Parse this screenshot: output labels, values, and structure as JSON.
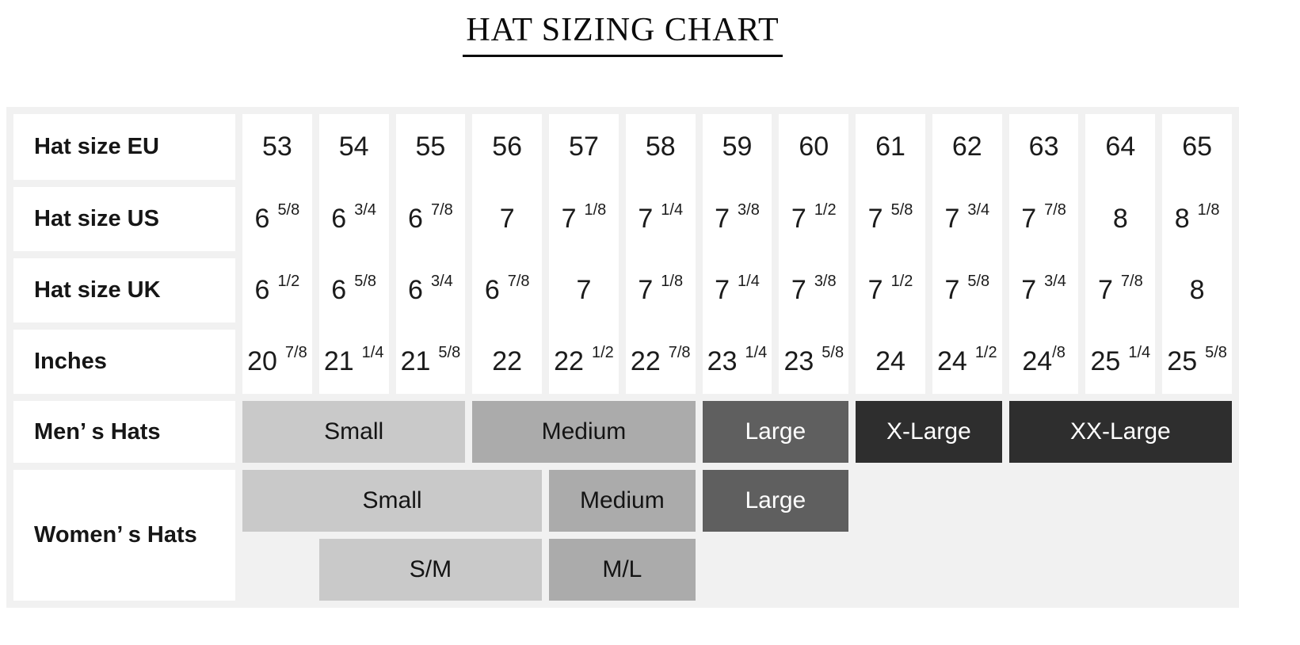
{
  "title": "HAT SIZING CHART",
  "colors": {
    "table_bg": "#f1f1f1",
    "cell_bg": "#ffffff",
    "text": "#1b1b1b",
    "tones": {
      "light": "#c9c9c9",
      "mid": "#ababab",
      "dark": "#5f5f5f",
      "darkest": "#2e2e2e"
    }
  },
  "chart_data": {
    "type": "table",
    "title": "HAT SIZING CHART",
    "eu_size_range": [
      53,
      65
    ],
    "rows": [
      {
        "label": "Hat size EU",
        "values": [
          "53",
          "54",
          "55",
          "56",
          "57",
          "58",
          "59",
          "60",
          "61",
          "62",
          "63",
          "64",
          "65"
        ]
      },
      {
        "label": "Hat size US",
        "values": [
          "6 5/8",
          "6 3/4",
          "6 7/8",
          "7",
          "7 1/8",
          "7 1/4",
          "7 3/8",
          "7 1/2",
          "7 5/8",
          "7 3/4",
          "7 7/8",
          "8",
          "8 1/8"
        ]
      },
      {
        "label": "Hat size UK",
        "values": [
          "6 1/2",
          "6 5/8",
          "6 3/4",
          "6 7/8",
          "7",
          "7 1/8",
          "7 1/4",
          "7 3/8",
          "7 1/2",
          "7 5/8",
          "7 3/4",
          "7 7/8",
          "8"
        ]
      },
      {
        "label": "Inches",
        "values": [
          "20 7/8",
          "21 1/4",
          "21 5/8",
          "22",
          "22 1/2",
          "22 7/8",
          "23 1/4",
          "23 5/8",
          "24",
          "24 1/2",
          "24/8",
          "25 1/4",
          "25 5/8"
        ]
      }
    ],
    "size_bands": {
      "mens": {
        "label": "Men’ s Hats",
        "bands": [
          {
            "label": "Small",
            "from": 53,
            "to": 55,
            "tone": "light"
          },
          {
            "label": "Medium",
            "from": 56,
            "to": 58,
            "tone": "mid"
          },
          {
            "label": "Large",
            "from": 59,
            "to": 60,
            "tone": "dark"
          },
          {
            "label": "X-Large",
            "from": 61,
            "to": 62,
            "tone": "darkest"
          },
          {
            "label": "XX-Large",
            "from": 63,
            "to": 65,
            "tone": "darkest"
          }
        ]
      },
      "womens": {
        "label": "Women’ s Hats",
        "rows": [
          [
            {
              "label": "Small",
              "from": 53,
              "to": 56,
              "tone": "light"
            },
            {
              "label": "Medium",
              "from": 57,
              "to": 58,
              "tone": "mid"
            },
            {
              "label": "Large",
              "from": 59,
              "to": 60,
              "tone": "dark"
            }
          ],
          [
            {
              "label": "S/M",
              "from": 54,
              "to": 56,
              "tone": "light"
            },
            {
              "label": "M/L",
              "from": 57,
              "to": 58,
              "tone": "mid"
            }
          ]
        ]
      }
    }
  }
}
